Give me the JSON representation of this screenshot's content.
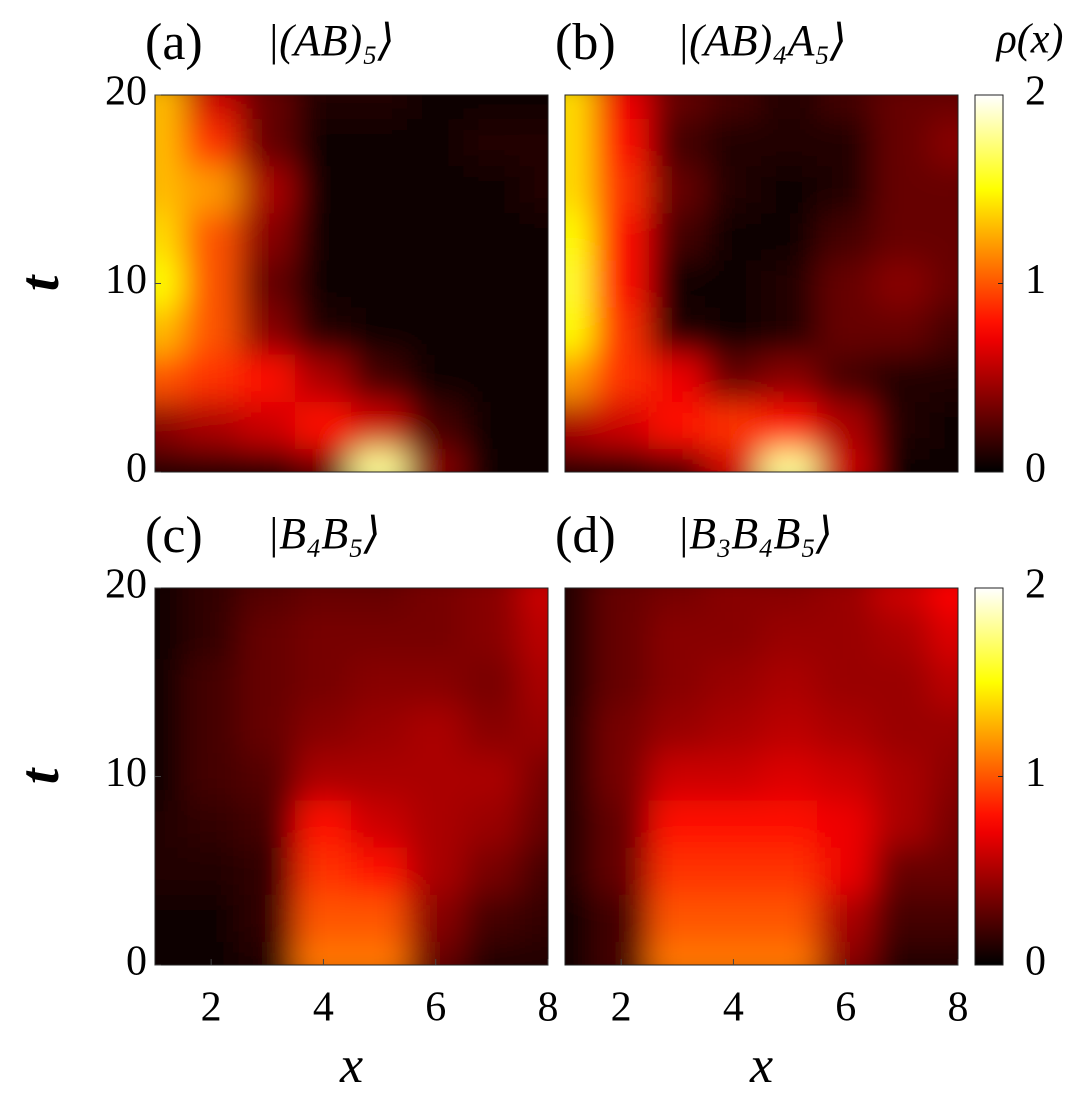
{
  "chart_data": [
    {
      "type": "heatmap",
      "label": "(a)",
      "title": "|(AB)₅⟩",
      "ylabel": "t",
      "x": [
        1,
        2,
        3,
        4,
        5,
        6,
        7,
        8
      ],
      "y": [
        0,
        2.5,
        5,
        7.5,
        10,
        12.5,
        15,
        17.5,
        20
      ],
      "xlim": [
        1,
        8
      ],
      "ylim": [
        0,
        20
      ],
      "yticks": [
        0,
        10,
        20
      ],
      "colormap": "hot",
      "clim": [
        0,
        2
      ],
      "values": [
        [
          0.1,
          0.1,
          0.1,
          0.3,
          1.8,
          0.4,
          0.05,
          0.05
        ],
        [
          0.4,
          0.5,
          0.6,
          0.8,
          0.6,
          0.2,
          0.05,
          0.05
        ],
        [
          1.0,
          0.9,
          0.8,
          0.5,
          0.2,
          0.05,
          0.03,
          0.03
        ],
        [
          1.3,
          1.0,
          0.4,
          0.1,
          0.05,
          0.03,
          0.02,
          0.02
        ],
        [
          1.5,
          1.0,
          0.3,
          0.05,
          0.02,
          0.02,
          0.02,
          0.02
        ],
        [
          1.4,
          1.0,
          0.4,
          0.05,
          0.02,
          0.02,
          0.02,
          0.02
        ],
        [
          1.3,
          1.2,
          0.5,
          0.05,
          0.02,
          0.02,
          0.05,
          0.1
        ],
        [
          1.3,
          0.9,
          0.3,
          0.05,
          0.05,
          0.05,
          0.1,
          0.1
        ],
        [
          1.3,
          0.6,
          0.3,
          0.1,
          0.1,
          0.05,
          0.05,
          0.05
        ]
      ]
    },
    {
      "type": "heatmap",
      "label": "(b)",
      "title": "|(AB)₄A₅⟩",
      "x": [
        1,
        2,
        3,
        4,
        5,
        6,
        7,
        8
      ],
      "y": [
        0,
        2.5,
        5,
        7.5,
        10,
        12.5,
        15,
        17.5,
        20
      ],
      "xlim": [
        1,
        8
      ],
      "ylim": [
        0,
        20
      ],
      "colormap": "hot",
      "clim": [
        0,
        2
      ],
      "colorbar": {
        "label": "ρ(x)",
        "ticks": [
          0,
          1,
          2
        ]
      },
      "values": [
        [
          0.1,
          0.1,
          0.2,
          0.6,
          1.8,
          0.6,
          0.05,
          0.05
        ],
        [
          0.5,
          0.6,
          0.8,
          0.9,
          0.8,
          0.5,
          0.1,
          0.05
        ],
        [
          1.2,
          0.9,
          0.7,
          0.3,
          0.4,
          0.2,
          0.1,
          0.1
        ],
        [
          1.5,
          0.9,
          0.1,
          0.05,
          0.1,
          0.3,
          0.3,
          0.2
        ],
        [
          1.6,
          0.8,
          0.05,
          0.05,
          0.1,
          0.3,
          0.4,
          0.3
        ],
        [
          1.5,
          0.8,
          0.2,
          0.05,
          0.05,
          0.2,
          0.3,
          0.3
        ],
        [
          1.4,
          0.9,
          0.3,
          0.1,
          0.05,
          0.1,
          0.3,
          0.3
        ],
        [
          1.4,
          0.8,
          0.2,
          0.1,
          0.1,
          0.1,
          0.3,
          0.4
        ],
        [
          1.4,
          0.7,
          0.3,
          0.2,
          0.1,
          0.2,
          0.3,
          0.3
        ]
      ]
    },
    {
      "type": "heatmap",
      "label": "(c)",
      "title": "|B₄B₅⟩",
      "xlabel": "x",
      "ylabel": "t",
      "x": [
        1,
        2,
        3,
        4,
        5,
        6,
        7,
        8
      ],
      "y": [
        0,
        2.5,
        5,
        7.5,
        10,
        12.5,
        15,
        17.5,
        20
      ],
      "xlim": [
        1,
        8
      ],
      "ylim": [
        0,
        20
      ],
      "xticks": [
        2,
        4,
        6,
        8
      ],
      "yticks": [
        0,
        10,
        20
      ],
      "colormap": "hot",
      "clim": [
        0,
        2
      ],
      "values": [
        [
          0.05,
          0.05,
          0.1,
          1.1,
          1.1,
          0.3,
          0.1,
          0.1
        ],
        [
          0.05,
          0.05,
          0.15,
          1.0,
          1.0,
          0.4,
          0.2,
          0.15
        ],
        [
          0.1,
          0.1,
          0.15,
          0.9,
          0.8,
          0.5,
          0.35,
          0.2
        ],
        [
          0.1,
          0.15,
          0.2,
          0.8,
          0.6,
          0.5,
          0.45,
          0.3
        ],
        [
          0.05,
          0.2,
          0.25,
          0.5,
          0.5,
          0.5,
          0.5,
          0.35
        ],
        [
          0.05,
          0.2,
          0.3,
          0.4,
          0.45,
          0.5,
          0.4,
          0.45
        ],
        [
          0.05,
          0.2,
          0.3,
          0.35,
          0.4,
          0.4,
          0.35,
          0.5
        ],
        [
          0.05,
          0.15,
          0.3,
          0.35,
          0.35,
          0.35,
          0.4,
          0.55
        ],
        [
          0.05,
          0.15,
          0.25,
          0.3,
          0.3,
          0.35,
          0.4,
          0.6
        ]
      ]
    },
    {
      "type": "heatmap",
      "label": "(d)",
      "title": "|B₃B₄B₅⟩",
      "xlabel": "x",
      "x": [
        1,
        2,
        3,
        4,
        5,
        6,
        7,
        8
      ],
      "y": [
        0,
        2.5,
        5,
        7.5,
        10,
        12.5,
        15,
        17.5,
        20
      ],
      "xlim": [
        1,
        8
      ],
      "ylim": [
        0,
        20
      ],
      "xticks": [
        2,
        4,
        6,
        8
      ],
      "colormap": "hot",
      "clim": [
        0,
        2
      ],
      "colorbar": {
        "ticks": [
          0,
          1,
          2
        ]
      },
      "values": [
        [
          0.05,
          0.2,
          1.1,
          1.1,
          1.1,
          0.4,
          0.1,
          0.1
        ],
        [
          0.05,
          0.2,
          1.0,
          1.0,
          1.0,
          0.5,
          0.2,
          0.2
        ],
        [
          0.1,
          0.3,
          0.9,
          0.9,
          0.9,
          0.7,
          0.3,
          0.3
        ],
        [
          0.1,
          0.3,
          0.8,
          0.8,
          0.8,
          0.7,
          0.5,
          0.35
        ],
        [
          0.1,
          0.35,
          0.6,
          0.6,
          0.65,
          0.6,
          0.5,
          0.4
        ],
        [
          0.1,
          0.35,
          0.45,
          0.5,
          0.55,
          0.5,
          0.45,
          0.45
        ],
        [
          0.1,
          0.3,
          0.4,
          0.45,
          0.5,
          0.45,
          0.45,
          0.55
        ],
        [
          0.1,
          0.3,
          0.4,
          0.4,
          0.45,
          0.45,
          0.5,
          0.65
        ],
        [
          0.1,
          0.3,
          0.35,
          0.4,
          0.4,
          0.45,
          0.6,
          0.75
        ]
      ]
    }
  ]
}
